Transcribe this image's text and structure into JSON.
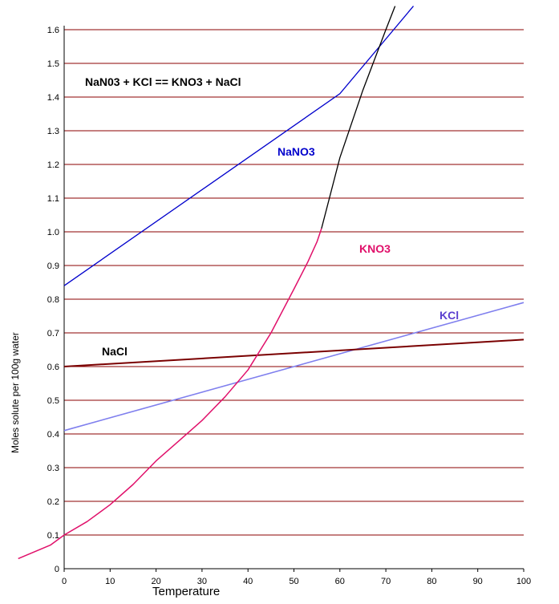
{
  "chart_data": {
    "type": "line",
    "title": "",
    "annotation": "NaN03  +  KCl  ==  KNO3  +  NaCl",
    "xlabel": "Temperature",
    "ylabel": "Moles solute per 100g water",
    "xlim": [
      0,
      100
    ],
    "ylim": [
      0,
      1.65
    ],
    "x_ticks": [
      "0",
      "10",
      "20",
      "30",
      "40",
      "50",
      "60",
      "70",
      "80",
      "90",
      "100"
    ],
    "y_ticks": [
      "0",
      "0.1",
      "0.2",
      "0.3",
      "0.4",
      "0.5",
      "0.6",
      "0.7",
      "0.8",
      "0.9",
      "1.0",
      "1.1",
      "1.2",
      "1.3",
      "1.4",
      "1.5",
      "1.6"
    ],
    "grid": "horizontal",
    "colors": {
      "grid": "#8b0000",
      "NaNO3": "#0000cc",
      "KNO3_low": "#e0106a",
      "KNO3_high": "#000000",
      "KCl": "#7f7fee",
      "NaCl": "#7a0000"
    },
    "series": [
      {
        "name": "NaNO3",
        "x": [
          0,
          60,
          76
        ],
        "y": [
          0.84,
          1.41,
          1.67
        ]
      },
      {
        "name": "KNO3",
        "segments": [
          {
            "x": [
              -10,
              -3,
              0,
              5,
              10,
              15,
              20,
              25,
              30,
              35,
              40,
              45,
              50,
              53,
              55,
              56
            ],
            "y": [
              0.03,
              0.07,
              0.1,
              0.14,
              0.19,
              0.25,
              0.32,
              0.38,
              0.44,
              0.51,
              0.59,
              0.7,
              0.83,
              0.91,
              0.97,
              1.01
            ]
          },
          {
            "x": [
              56,
              60,
              65,
              70,
              72
            ],
            "y": [
              1.01,
              1.22,
              1.42,
              1.6,
              1.67
            ]
          }
        ]
      },
      {
        "name": "KCl",
        "x": [
          0,
          100
        ],
        "y": [
          0.41,
          0.79
        ]
      },
      {
        "name": "NaCl",
        "x": [
          0,
          100
        ],
        "y": [
          0.6,
          0.68
        ]
      }
    ]
  }
}
